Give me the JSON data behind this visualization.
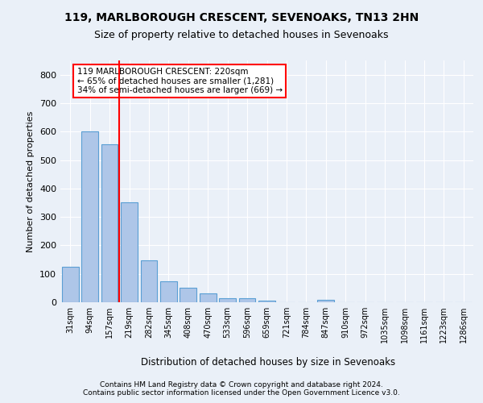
{
  "title1": "119, MARLBOROUGH CRESCENT, SEVENOAKS, TN13 2HN",
  "title2": "Size of property relative to detached houses in Sevenoaks",
  "xlabel": "Distribution of detached houses by size in Sevenoaks",
  "ylabel": "Number of detached properties",
  "bar_labels": [
    "31sqm",
    "94sqm",
    "157sqm",
    "219sqm",
    "282sqm",
    "345sqm",
    "408sqm",
    "470sqm",
    "533sqm",
    "596sqm",
    "659sqm",
    "721sqm",
    "784sqm",
    "847sqm",
    "910sqm",
    "972sqm",
    "1035sqm",
    "1098sqm",
    "1161sqm",
    "1223sqm",
    "1286sqm"
  ],
  "bar_values": [
    125,
    600,
    555,
    350,
    148,
    75,
    50,
    30,
    13,
    13,
    7,
    0,
    0,
    8,
    0,
    0,
    0,
    0,
    0,
    0,
    0
  ],
  "bar_color": "#aec6e8",
  "bar_edge_color": "#5a9fd4",
  "redline_x": 2.5,
  "ylim": [
    0,
    850
  ],
  "yticks": [
    0,
    100,
    200,
    300,
    400,
    500,
    600,
    700,
    800
  ],
  "annotation_text": "119 MARLBOROUGH CRESCENT: 220sqm\n← 65% of detached houses are smaller (1,281)\n34% of semi-detached houses are larger (669) →",
  "annotation_box_color": "white",
  "annotation_box_edge_color": "red",
  "footer1": "Contains HM Land Registry data © Crown copyright and database right 2024.",
  "footer2": "Contains public sector information licensed under the Open Government Licence v3.0.",
  "bg_color": "#eaf0f8",
  "axes_bg_color": "#eaf0f8",
  "grid_color": "white"
}
